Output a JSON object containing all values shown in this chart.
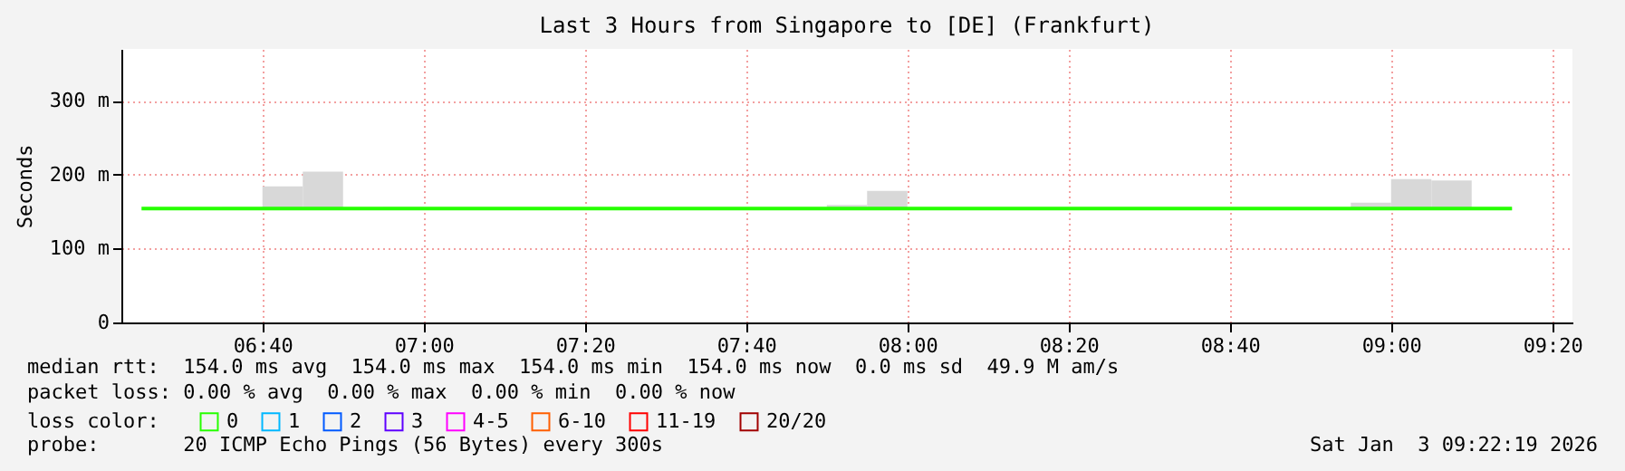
{
  "chart_data": {
    "type": "step",
    "title": "Last 3 Hours from Singapore to [DE] (Frankfurt)",
    "ylabel": "Seconds",
    "x": [
      "2026-01-03T06:25",
      "2026-01-03T06:30",
      "2026-01-03T06:35",
      "2026-01-03T06:40",
      "2026-01-03T06:45",
      "2026-01-03T06:50",
      "2026-01-03T06:55",
      "2026-01-03T07:00",
      "2026-01-03T07:05",
      "2026-01-03T07:10",
      "2026-01-03T07:15",
      "2026-01-03T07:20",
      "2026-01-03T07:25",
      "2026-01-03T07:30",
      "2026-01-03T07:35",
      "2026-01-03T07:40",
      "2026-01-03T07:45",
      "2026-01-03T07:50",
      "2026-01-03T07:55",
      "2026-01-03T08:00",
      "2026-01-03T08:05",
      "2026-01-03T08:10",
      "2026-01-03T08:15",
      "2026-01-03T08:20",
      "2026-01-03T08:25",
      "2026-01-03T08:30",
      "2026-01-03T08:35",
      "2026-01-03T08:40",
      "2026-01-03T08:45",
      "2026-01-03T08:50",
      "2026-01-03T08:55",
      "2026-01-03T09:00",
      "2026-01-03T09:05",
      "2026-01-03T09:10",
      "2026-01-03T09:15"
    ],
    "legend_title": "loss color:",
    "series": [
      {
        "name": "0",
        "color": "#26ff00",
        "values": [
          154,
          154,
          154,
          154,
          154,
          154,
          154,
          154,
          154,
          154,
          154,
          154,
          154,
          154,
          154,
          154,
          154,
          154,
          154,
          154,
          154,
          154,
          154,
          154,
          154,
          154,
          154,
          154,
          154,
          154,
          154,
          154,
          154,
          154,
          154
        ],
        "lower": [
          null,
          null,
          152,
          152,
          152,
          null,
          152,
          null,
          null,
          null,
          null,
          null,
          null,
          null,
          null,
          null,
          null,
          152,
          152,
          null,
          null,
          null,
          null,
          null,
          null,
          null,
          null,
          null,
          null,
          null,
          152,
          152,
          152,
          152,
          null
        ],
        "upper": [
          null,
          null,
          156,
          184,
          204,
          null,
          156,
          null,
          null,
          null,
          null,
          null,
          null,
          null,
          null,
          null,
          null,
          159,
          178,
          null,
          null,
          null,
          null,
          null,
          null,
          null,
          null,
          null,
          null,
          null,
          162,
          194,
          192,
          156,
          null
        ]
      },
      {
        "name": "1",
        "color": "#00b8ff",
        "values": [
          null,
          null,
          null,
          null,
          null,
          null,
          null,
          null,
          null,
          null,
          null,
          null,
          null,
          null,
          null,
          null,
          null,
          null,
          null,
          null,
          null,
          null,
          null,
          null,
          null,
          null,
          null,
          null,
          null,
          null,
          null,
          null,
          null,
          null,
          null
        ]
      },
      {
        "name": "2",
        "color": "#0059ff",
        "values": [
          null,
          null,
          null,
          null,
          null,
          null,
          null,
          null,
          null,
          null,
          null,
          null,
          null,
          null,
          null,
          null,
          null,
          null,
          null,
          null,
          null,
          null,
          null,
          null,
          null,
          null,
          null,
          null,
          null,
          null,
          null,
          null,
          null,
          null,
          null
        ]
      },
      {
        "name": "3",
        "color": "#5e00ff",
        "values": [
          null,
          null,
          null,
          null,
          null,
          null,
          null,
          null,
          null,
          null,
          null,
          null,
          null,
          null,
          null,
          null,
          null,
          null,
          null,
          null,
          null,
          null,
          null,
          null,
          null,
          null,
          null,
          null,
          null,
          null,
          null,
          null,
          null,
          null,
          null
        ]
      },
      {
        "name": "4-5",
        "color": "#ff00ff",
        "values": [
          null,
          null,
          null,
          null,
          null,
          null,
          null,
          null,
          null,
          null,
          null,
          null,
          null,
          null,
          null,
          null,
          null,
          null,
          null,
          null,
          null,
          null,
          null,
          null,
          null,
          null,
          null,
          null,
          null,
          null,
          null,
          null,
          null,
          null,
          null
        ]
      },
      {
        "name": "6-10",
        "color": "#ff5e00",
        "values": [
          null,
          null,
          null,
          null,
          null,
          null,
          null,
          null,
          null,
          null,
          null,
          null,
          null,
          null,
          null,
          null,
          null,
          null,
          null,
          null,
          null,
          null,
          null,
          null,
          null,
          null,
          null,
          null,
          null,
          null,
          null,
          null,
          null,
          null,
          null
        ]
      },
      {
        "name": "11-19",
        "color": "#ff0000",
        "values": [
          null,
          null,
          null,
          null,
          null,
          null,
          null,
          null,
          null,
          null,
          null,
          null,
          null,
          null,
          null,
          null,
          null,
          null,
          null,
          null,
          null,
          null,
          null,
          null,
          null,
          null,
          null,
          null,
          null,
          null,
          null,
          null,
          null,
          null,
          null
        ]
      },
      {
        "name": "20/20",
        "color": "#a10000",
        "values": [
          null,
          null,
          null,
          null,
          null,
          null,
          null,
          null,
          null,
          null,
          null,
          null,
          null,
          null,
          null,
          null,
          null,
          null,
          null,
          null,
          null,
          null,
          null,
          null,
          null,
          null,
          null,
          null,
          null,
          null,
          null,
          null,
          null,
          null,
          null
        ]
      }
    ],
    "xlim": [
      "2026-01-03T06:22:30",
      "2026-01-03T09:22:30"
    ],
    "xticks": [
      {
        "value": "2026-01-03T06:40",
        "label": "06:40"
      },
      {
        "value": "2026-01-03T07:00",
        "label": "07:00"
      },
      {
        "value": "2026-01-03T07:20",
        "label": "07:20"
      },
      {
        "value": "2026-01-03T07:40",
        "label": "07:40"
      },
      {
        "value": "2026-01-03T08:00",
        "label": "08:00"
      },
      {
        "value": "2026-01-03T08:20",
        "label": "08:20"
      },
      {
        "value": "2026-01-03T08:40",
        "label": "08:40"
      },
      {
        "value": "2026-01-03T09:00",
        "label": "09:00"
      },
      {
        "value": "2026-01-03T09:20",
        "label": "09:20"
      }
    ],
    "ylim": [
      0,
      370
    ],
    "yticks": [
      0,
      {
        "value": 100,
        "label": "100 m"
      },
      {
        "value": 200,
        "label": "200 m"
      },
      {
        "value": 300,
        "label": "300 m"
      }
    ],
    "grid": true,
    "legend": "bottom",
    "annotations": [
      "median rtt:  154.0 ms avg  154.0 ms max  154.0 ms min  154.0 ms now  0.0 ms sd  49.9 M am/s",
      "packet loss: 0.00 % avg  0.00 % max  0.00 % min  0.00 % now",
      "probe:       20 ICMP Echo Pings (56 Bytes) every 300s",
      "Sat Jan  3 09:22:19 2026"
    ]
  }
}
